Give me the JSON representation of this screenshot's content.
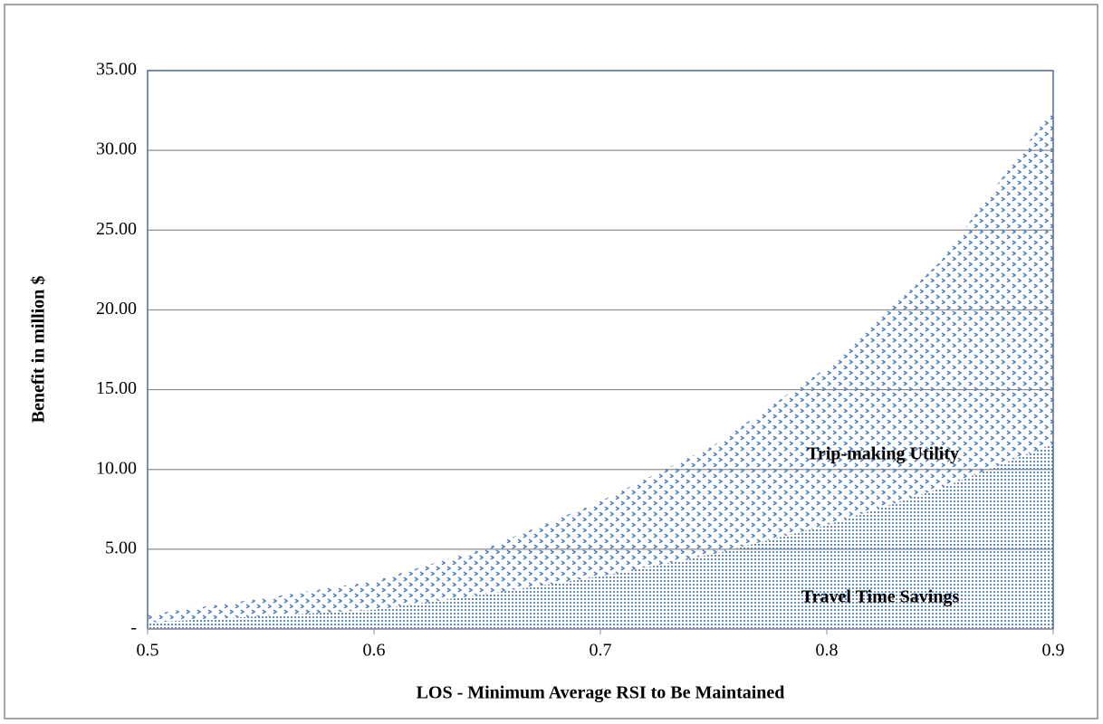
{
  "chart_data": {
    "type": "stacked_area",
    "x_label": "LOS - Minimum Average RSI to Be Maintained",
    "y_label": "Benefit in million $",
    "x": [
      0.5,
      0.55,
      0.6,
      0.65,
      0.7,
      0.75,
      0.8,
      0.85,
      0.9
    ],
    "series": [
      {
        "name": "Travel Time Savings",
        "color": "#4f81bd",
        "values": [
          0.4,
          0.8,
          1.2,
          2.2,
          3.3,
          4.7,
          6.5,
          8.8,
          11.6
        ]
      },
      {
        "name": "Trip-making Utility",
        "color": "#4f81bd",
        "values": [
          0.5,
          1.1,
          1.8,
          2.9,
          4.7,
          6.8,
          9.9,
          14.2,
          21.0
        ]
      }
    ],
    "xlim": [
      0.5,
      0.9
    ],
    "xticks": [
      0.5,
      0.6,
      0.7,
      0.8,
      0.9
    ],
    "ylim": [
      0,
      35
    ],
    "yticks": [
      {
        "value": 0,
        "label": "-"
      },
      {
        "value": 5,
        "label": "5.00"
      },
      {
        "value": 10,
        "label": "10.00"
      },
      {
        "value": 15,
        "label": "15.00"
      },
      {
        "value": 20,
        "label": "20.00"
      },
      {
        "value": 25,
        "label": "25.00"
      },
      {
        "value": 30,
        "label": "30.00"
      },
      {
        "value": 35,
        "label": "35.00"
      }
    ],
    "grid": true
  }
}
